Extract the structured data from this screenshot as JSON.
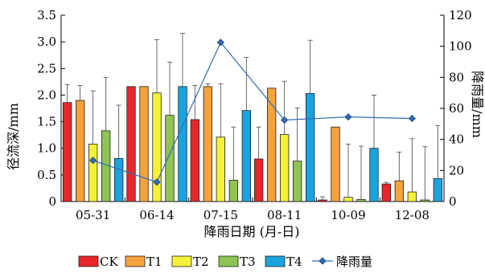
{
  "chart_data": {
    "type": "bar",
    "xlabel": "降雨日期 (月-日)",
    "ylabel": "径流深/mm",
    "y2label": "降雨量/mm",
    "ylim": [
      0,
      3.5
    ],
    "y2lim": [
      0,
      120
    ],
    "yticks": [
      "0",
      "0.5",
      "1.0",
      "1.5",
      "2.0",
      "2.5",
      "3.0",
      "3.5"
    ],
    "y2ticks": [
      "0",
      "20",
      "40",
      "60",
      "80",
      "100",
      "120"
    ],
    "categories": [
      "05-31",
      "06-14",
      "07-15",
      "08-11",
      "10-09",
      "12-08"
    ],
    "series": [
      {
        "name": "CK",
        "color": "#e8262b",
        "values": [
          1.86,
          2.16,
          1.54,
          0.8,
          0.03,
          0.33
        ],
        "err": [
          0.34,
          0.0,
          0.64,
          0.6,
          0.06,
          0.03
        ]
      },
      {
        "name": "T1",
        "color": "#f4a23a",
        "values": [
          1.9,
          2.16,
          2.16,
          2.13,
          1.4,
          0.39
        ],
        "err": [
          0.28,
          0.0,
          0.05,
          0.0,
          0.0,
          0.54
        ]
      },
      {
        "name": "T2",
        "color": "#f5f03a",
        "values": [
          1.08,
          2.04,
          1.21,
          1.26,
          0.08,
          0.18
        ],
        "err": [
          1.0,
          1.0,
          1.0,
          1.0,
          1.0,
          1.0
        ]
      },
      {
        "name": "T3",
        "color": "#8dc453",
        "values": [
          1.33,
          1.62,
          0.4,
          0.76,
          0.04,
          0.03
        ],
        "err": [
          1.0,
          1.0,
          1.0,
          1.0,
          1.0,
          1.0
        ]
      },
      {
        "name": "T4",
        "color": "#1aa3dc",
        "values": [
          0.81,
          2.16,
          1.71,
          2.03,
          1.0,
          0.43
        ],
        "err": [
          1.0,
          1.0,
          1.0,
          1.0,
          1.0,
          1.0
        ]
      }
    ],
    "line_series": {
      "name": "降雨量",
      "axis": "right",
      "color": "#2f6db5",
      "values": [
        26.5,
        12.5,
        102.5,
        52.5,
        54.5,
        53.5
      ]
    },
    "legend_position": "bottom-center",
    "grid": false
  }
}
